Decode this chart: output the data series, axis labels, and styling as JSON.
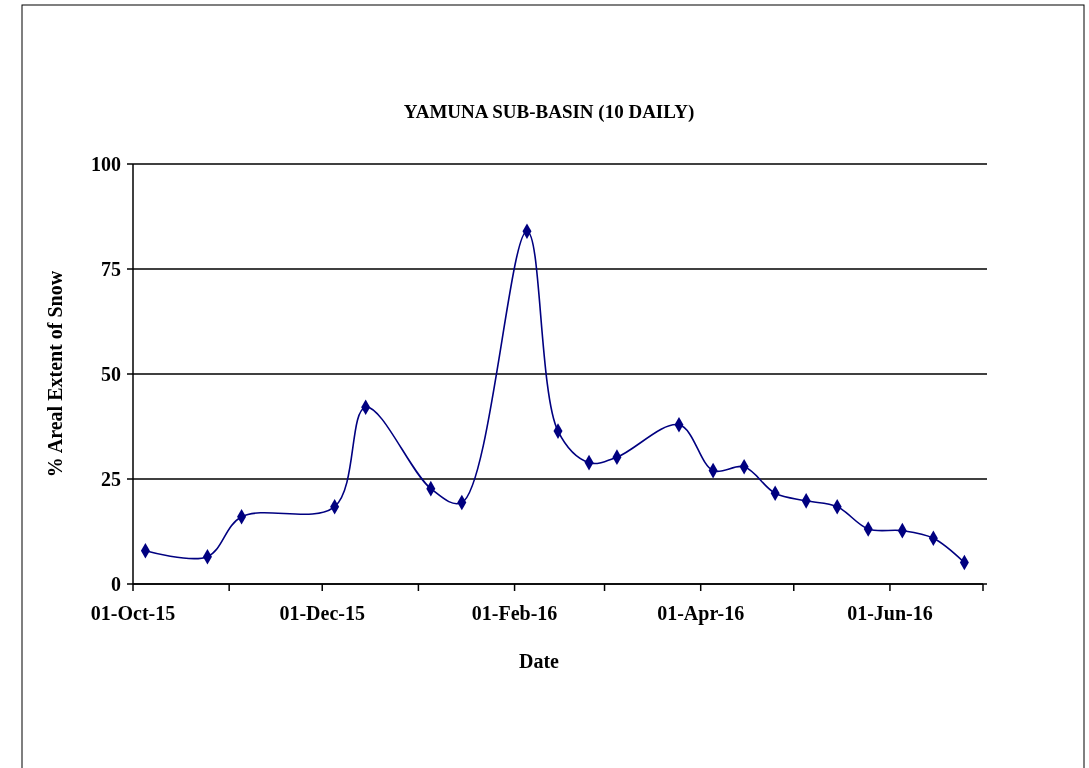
{
  "chart_data": {
    "type": "line",
    "title": "YAMUNA SUB-BASIN (10 DAILY)",
    "xlabel": "Date",
    "ylabel": "% Areal Extent of Snow",
    "x": [
      "2015-10-05",
      "2015-10-25",
      "2015-11-05",
      "2015-12-05",
      "2015-12-15",
      "2016-01-05",
      "2016-01-15",
      "2016-02-05",
      "2016-02-15",
      "2016-02-25",
      "2016-03-05",
      "2016-03-25",
      "2016-04-05",
      "2016-04-15",
      "2016-04-25",
      "2016-05-05",
      "2016-05-15",
      "2016-05-25",
      "2016-06-05",
      "2016-06-15",
      "2016-06-25"
    ],
    "series": [
      {
        "color": "#000080",
        "values": [
          7.9,
          6.5,
          16.0,
          18.4,
          42.1,
          22.7,
          19.4,
          84.0,
          36.4,
          28.9,
          30.2,
          37.9,
          27.0,
          27.9,
          21.6,
          19.8,
          18.4,
          13.1,
          12.7,
          10.9,
          5.1
        ]
      }
    ],
    "xlim": [
      "2015-10-01",
      "2016-07-01"
    ],
    "xticks": [
      {
        "value": "2015-10-01",
        "label": "01-Oct-15"
      },
      {
        "value": "2015-11-01",
        "label": null
      },
      {
        "value": "2015-12-01",
        "label": "01-Dec-15"
      },
      {
        "value": "2016-01-01",
        "label": null
      },
      {
        "value": "2016-02-01",
        "label": "01-Feb-16"
      },
      {
        "value": "2016-03-01",
        "label": null
      },
      {
        "value": "2016-04-01",
        "label": "01-Apr-16"
      },
      {
        "value": "2016-05-01",
        "label": null
      },
      {
        "value": "2016-06-01",
        "label": "01-Jun-16"
      },
      {
        "value": "2016-07-01",
        "label": null
      }
    ],
    "ylim": [
      0,
      100
    ],
    "yticks": [
      0,
      25,
      50,
      75,
      100
    ],
    "grid": "y",
    "marker": "diamond",
    "line_style": "solid"
  }
}
